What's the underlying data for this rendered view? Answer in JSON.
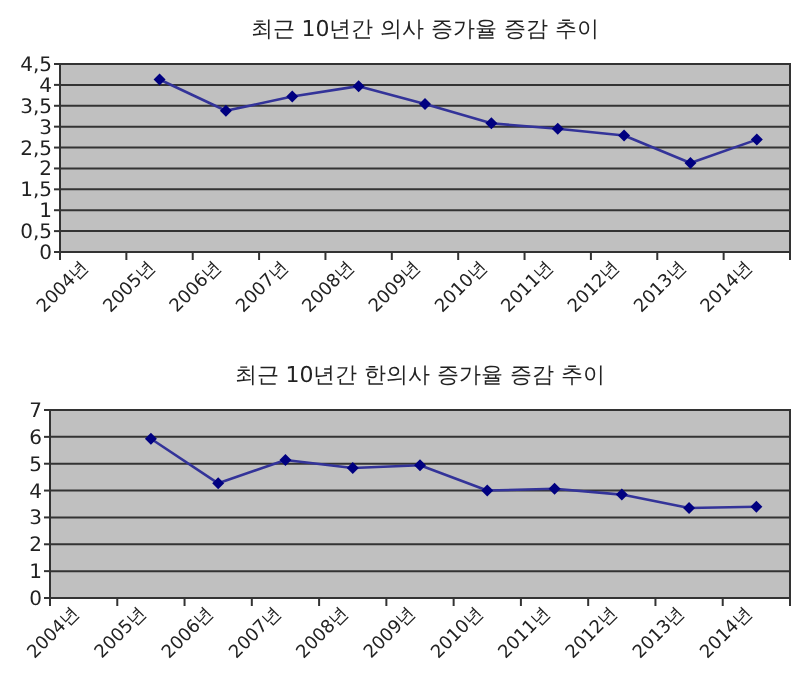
{
  "chart_data": [
    {
      "type": "line",
      "title": "최근 10년간 의사 증가율 증감 추이",
      "categories": [
        "2004년",
        "2005년",
        "2006년",
        "2007년",
        "2008년",
        "2009년",
        "2010년",
        "2011년",
        "2012년",
        "2013년",
        "2014년"
      ],
      "series": [
        {
          "color": "#333399",
          "values": [
            null,
            4.13,
            3.38,
            3.72,
            3.97,
            3.54,
            3.08,
            2.95,
            2.79,
            2.13,
            2.69
          ]
        }
      ],
      "ylim": [
        0,
        4.5
      ],
      "yticks": [
        0,
        {
          "value": 0.5,
          "label": "0,5"
        },
        1,
        {
          "value": 1.5,
          "label": "1,5"
        },
        2,
        {
          "value": 2.5,
          "label": "2,5"
        },
        3,
        {
          "value": 3.5,
          "label": "3,5"
        },
        4,
        {
          "value": 4.5,
          "label": "4,5"
        }
      ],
      "grid": "y",
      "marker": "diamond"
    },
    {
      "type": "line",
      "title": "최근 10년간 한의사 증가율 증감 추이",
      "categories": [
        "2004년",
        "2005년",
        "2006년",
        "2007년",
        "2008년",
        "2009년",
        "2010년",
        "2011년",
        "2012년",
        "2013년",
        "2014년"
      ],
      "series": [
        {
          "color": "#333399",
          "values": [
            null,
            5.93,
            4.27,
            5.14,
            4.84,
            4.94,
            4.0,
            4.07,
            3.85,
            3.35,
            3.4
          ]
        }
      ],
      "ylim": [
        0,
        7
      ],
      "yticks": [
        0,
        1,
        2,
        3,
        4,
        5,
        6,
        7
      ],
      "grid": "y",
      "marker": "diamond"
    }
  ]
}
